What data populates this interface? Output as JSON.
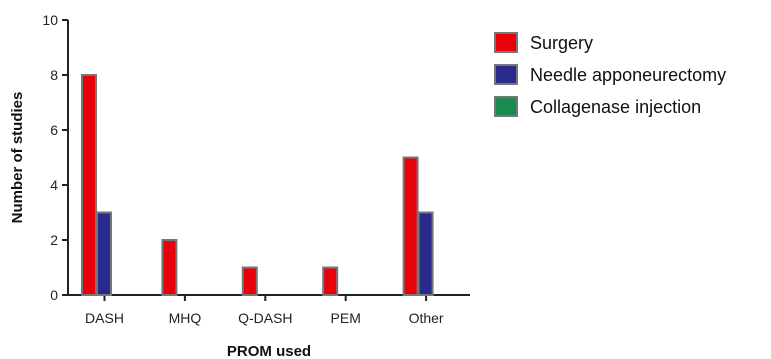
{
  "chart_data": {
    "type": "bar",
    "categories": [
      "DASH",
      "MHQ",
      "Q-DASH",
      "PEM",
      "Other"
    ],
    "series": [
      {
        "name": "Surgery",
        "values": [
          8,
          2,
          1,
          1,
          5
        ],
        "color": "#e8000b"
      },
      {
        "name": "Needle apponeurectomy",
        "values": [
          3,
          0,
          0,
          0,
          3
        ],
        "color": "#2a2a8c"
      },
      {
        "name": "Collagenase injection",
        "values": [
          0,
          0,
          0,
          0,
          0
        ],
        "color": "#1a8a50"
      }
    ],
    "xlabel": "PROM used",
    "ylabel": "Number of studies",
    "ylim": [
      0,
      10
    ],
    "yticks": [
      0,
      2,
      4,
      6,
      8,
      10
    ],
    "legend_position": "top-right",
    "grid": false
  }
}
